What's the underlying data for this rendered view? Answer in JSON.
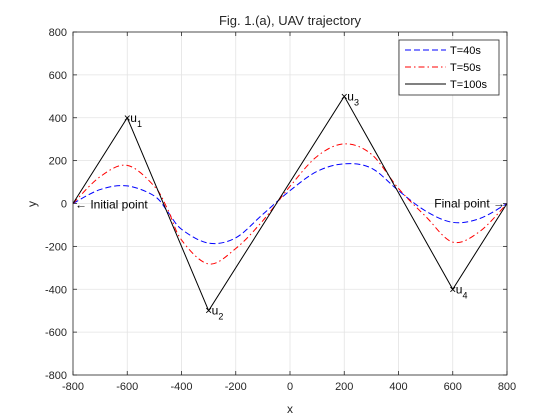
{
  "chart_data": {
    "type": "line",
    "title": "Fig. 1.(a), UAV trajectory",
    "xlabel": "x",
    "ylabel": "y",
    "xlim": [
      -800,
      800
    ],
    "ylim": [
      -800,
      800
    ],
    "xticks": [
      -800,
      -600,
      -400,
      -200,
      0,
      200,
      400,
      600,
      800
    ],
    "yticks": [
      -800,
      -600,
      -400,
      -200,
      0,
      200,
      400,
      600,
      800
    ],
    "grid": true,
    "legend_position": "top-right",
    "series": [
      {
        "name": "T=40s",
        "color": "#0000ff",
        "style": "dashed",
        "points": [
          [
            -800,
            0
          ],
          [
            -700,
            65
          ],
          [
            -600,
            82
          ],
          [
            -500,
            35
          ],
          [
            -450,
            -40
          ],
          [
            -400,
            -120
          ],
          [
            -300,
            -185
          ],
          [
            -200,
            -160
          ],
          [
            -100,
            -50
          ],
          [
            0,
            60
          ],
          [
            100,
            150
          ],
          [
            200,
            185
          ],
          [
            300,
            165
          ],
          [
            400,
            60
          ],
          [
            500,
            -35
          ],
          [
            600,
            -88
          ],
          [
            700,
            -70
          ],
          [
            800,
            0
          ]
        ]
      },
      {
        "name": "T=50s",
        "color": "#ff0000",
        "style": "dash-dot",
        "points": [
          [
            -800,
            0
          ],
          [
            -700,
            125
          ],
          [
            -600,
            178
          ],
          [
            -500,
            80
          ],
          [
            -450,
            -30
          ],
          [
            -400,
            -170
          ],
          [
            -300,
            -282
          ],
          [
            -200,
            -210
          ],
          [
            -100,
            -80
          ],
          [
            0,
            80
          ],
          [
            100,
            220
          ],
          [
            200,
            278
          ],
          [
            300,
            230
          ],
          [
            400,
            70
          ],
          [
            500,
            -60
          ],
          [
            600,
            -180
          ],
          [
            700,
            -130
          ],
          [
            800,
            0
          ]
        ]
      },
      {
        "name": "T=100s",
        "color": "#000000",
        "style": "solid",
        "points": [
          [
            -800,
            0
          ],
          [
            -600,
            400
          ],
          [
            -300,
            -500
          ],
          [
            200,
            500
          ],
          [
            600,
            -400
          ],
          [
            800,
            0
          ]
        ]
      }
    ],
    "waypoints": [
      {
        "label": "u",
        "sub": "1",
        "x": -600,
        "y": 400
      },
      {
        "label": "u",
        "sub": "2",
        "x": -300,
        "y": -500
      },
      {
        "label": "u",
        "sub": "3",
        "x": 200,
        "y": 500
      },
      {
        "label": "u",
        "sub": "4",
        "x": 600,
        "y": -400
      }
    ],
    "annotations": [
      {
        "text": "Initial point",
        "x": -800,
        "y": 0
      },
      {
        "text": "Final point",
        "x": 800,
        "y": 0
      }
    ]
  }
}
